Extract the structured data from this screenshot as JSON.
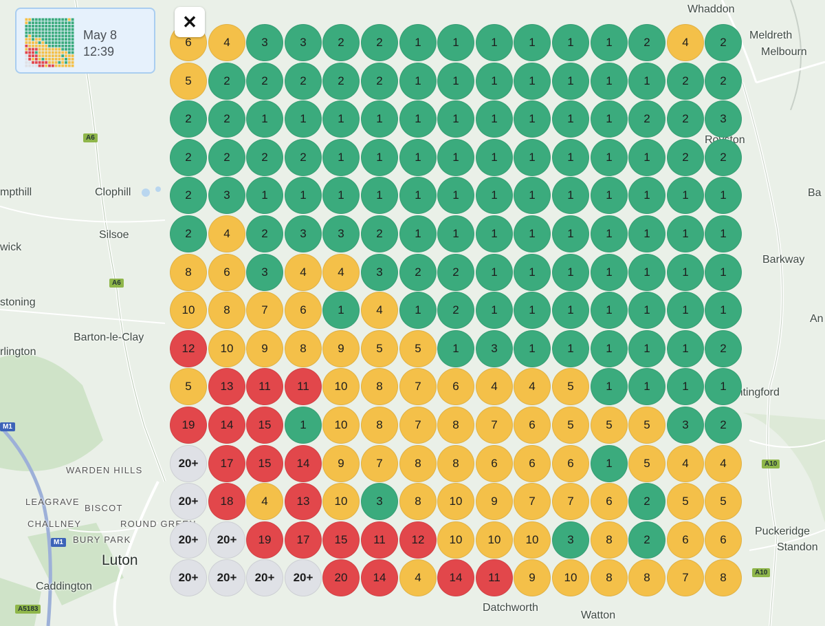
{
  "summary": {
    "date": "May 8",
    "time": "12:39"
  },
  "close_button": {
    "icon": "close-icon",
    "glyph": "✕"
  },
  "colors": {
    "green": "#3bab7d",
    "yellow": "#f4c049",
    "red": "#e2474b",
    "grey": "#dfe1e6"
  },
  "grid": {
    "rows": [
      [
        "6",
        "4",
        "3",
        "3",
        "2",
        "2",
        "1",
        "1",
        "1",
        "1",
        "1",
        "1",
        "2",
        "4",
        "2"
      ],
      [
        "5",
        "2",
        "2",
        "2",
        "2",
        "2",
        "1",
        "1",
        "1",
        "1",
        "1",
        "1",
        "1",
        "2",
        "2"
      ],
      [
        "2",
        "2",
        "1",
        "1",
        "1",
        "1",
        "1",
        "1",
        "1",
        "1",
        "1",
        "1",
        "2",
        "2",
        "3"
      ],
      [
        "2",
        "2",
        "2",
        "2",
        "1",
        "1",
        "1",
        "1",
        "1",
        "1",
        "1",
        "1",
        "1",
        "2",
        "2"
      ],
      [
        "2",
        "3",
        "1",
        "1",
        "1",
        "1",
        "1",
        "1",
        "1",
        "1",
        "1",
        "1",
        "1",
        "1",
        "1"
      ],
      [
        "2",
        "4",
        "2",
        "3",
        "3",
        "2",
        "1",
        "1",
        "1",
        "1",
        "1",
        "1",
        "1",
        "1",
        "1"
      ],
      [
        "8",
        "6",
        "3",
        "4",
        "4",
        "3",
        "2",
        "2",
        "1",
        "1",
        "1",
        "1",
        "1",
        "1",
        "1"
      ],
      [
        "10",
        "8",
        "7",
        "6",
        "1",
        "4",
        "1",
        "2",
        "1",
        "1",
        "1",
        "1",
        "1",
        "1",
        "1"
      ],
      [
        "12",
        "10",
        "9",
        "8",
        "9",
        "5",
        "5",
        "1",
        "3",
        "1",
        "1",
        "1",
        "1",
        "1",
        "2"
      ],
      [
        "5",
        "13",
        "11",
        "11",
        "10",
        "8",
        "7",
        "6",
        "4",
        "4",
        "5",
        "1",
        "1",
        "1",
        "1"
      ],
      [
        "19",
        "14",
        "15",
        "1",
        "10",
        "8",
        "7",
        "8",
        "7",
        "6",
        "5",
        "5",
        "5",
        "3",
        "2"
      ],
      [
        "20+",
        "17",
        "15",
        "14",
        "9",
        "7",
        "8",
        "8",
        "6",
        "6",
        "6",
        "1",
        "5",
        "4",
        "4"
      ],
      [
        "20+",
        "18",
        "4",
        "13",
        "10",
        "3",
        "8",
        "10",
        "9",
        "7",
        "7",
        "6",
        "2",
        "5",
        "5"
      ],
      [
        "20+",
        "20+",
        "19",
        "17",
        "15",
        "11",
        "12",
        "10",
        "10",
        "10",
        "3",
        "8",
        "2",
        "6",
        "6"
      ],
      [
        "20+",
        "20+",
        "20+",
        "20+",
        "20",
        "14",
        "4",
        "14",
        "11",
        "9",
        "10",
        "8",
        "8",
        "7",
        "8"
      ]
    ],
    "statuses": [
      [
        "y",
        "y",
        "g",
        "g",
        "g",
        "g",
        "g",
        "g",
        "g",
        "g",
        "g",
        "g",
        "g",
        "y",
        "g"
      ],
      [
        "y",
        "g",
        "g",
        "g",
        "g",
        "g",
        "g",
        "g",
        "g",
        "g",
        "g",
        "g",
        "g",
        "g",
        "g"
      ],
      [
        "g",
        "g",
        "g",
        "g",
        "g",
        "g",
        "g",
        "g",
        "g",
        "g",
        "g",
        "g",
        "g",
        "g",
        "g"
      ],
      [
        "g",
        "g",
        "g",
        "g",
        "g",
        "g",
        "g",
        "g",
        "g",
        "g",
        "g",
        "g",
        "g",
        "g",
        "g"
      ],
      [
        "g",
        "g",
        "g",
        "g",
        "g",
        "g",
        "g",
        "g",
        "g",
        "g",
        "g",
        "g",
        "g",
        "g",
        "g"
      ],
      [
        "g",
        "y",
        "g",
        "g",
        "g",
        "g",
        "g",
        "g",
        "g",
        "g",
        "g",
        "g",
        "g",
        "g",
        "g"
      ],
      [
        "y",
        "y",
        "g",
        "y",
        "y",
        "g",
        "g",
        "g",
        "g",
        "g",
        "g",
        "g",
        "g",
        "g",
        "g"
      ],
      [
        "y",
        "y",
        "y",
        "y",
        "g",
        "y",
        "g",
        "g",
        "g",
        "g",
        "g",
        "g",
        "g",
        "g",
        "g"
      ],
      [
        "r",
        "y",
        "y",
        "y",
        "y",
        "y",
        "y",
        "g",
        "g",
        "g",
        "g",
        "g",
        "g",
        "g",
        "g"
      ],
      [
        "y",
        "r",
        "r",
        "r",
        "y",
        "y",
        "y",
        "y",
        "y",
        "y",
        "y",
        "g",
        "g",
        "g",
        "g"
      ],
      [
        "r",
        "r",
        "r",
        "g",
        "y",
        "y",
        "y",
        "y",
        "y",
        "y",
        "y",
        "y",
        "y",
        "g",
        "g"
      ],
      [
        "x",
        "r",
        "r",
        "r",
        "y",
        "y",
        "y",
        "y",
        "y",
        "y",
        "y",
        "g",
        "y",
        "y",
        "y"
      ],
      [
        "x",
        "r",
        "y",
        "r",
        "y",
        "g",
        "y",
        "y",
        "y",
        "y",
        "y",
        "y",
        "g",
        "y",
        "y"
      ],
      [
        "x",
        "x",
        "r",
        "r",
        "r",
        "r",
        "r",
        "y",
        "y",
        "y",
        "g",
        "y",
        "g",
        "y",
        "y"
      ],
      [
        "x",
        "x",
        "x",
        "x",
        "r",
        "r",
        "y",
        "r",
        "r",
        "y",
        "y",
        "y",
        "y",
        "y",
        "y"
      ]
    ]
  },
  "map": {
    "places": [
      "Whaddon",
      "Meldreth",
      "Melbourn",
      "Royston",
      "Clophill",
      "mpthill",
      "Silsoe",
      "wick",
      "stoning",
      "Barton-le-Clay",
      "rlington",
      "Barkway",
      "An",
      "Ba",
      "Buntingford",
      "WARDEN HILLS",
      "LEAGRAVE",
      "BISCOT",
      "CHALLNEY",
      "ROUND GREEN",
      "BURY PARK",
      "Luton",
      "Caddington",
      "Datchworth",
      "Watton",
      "Puckeridge",
      "Standon"
    ],
    "road_labels": [
      "A6",
      "A6",
      "M1",
      "M1",
      "A10",
      "A10",
      "A5183"
    ]
  }
}
